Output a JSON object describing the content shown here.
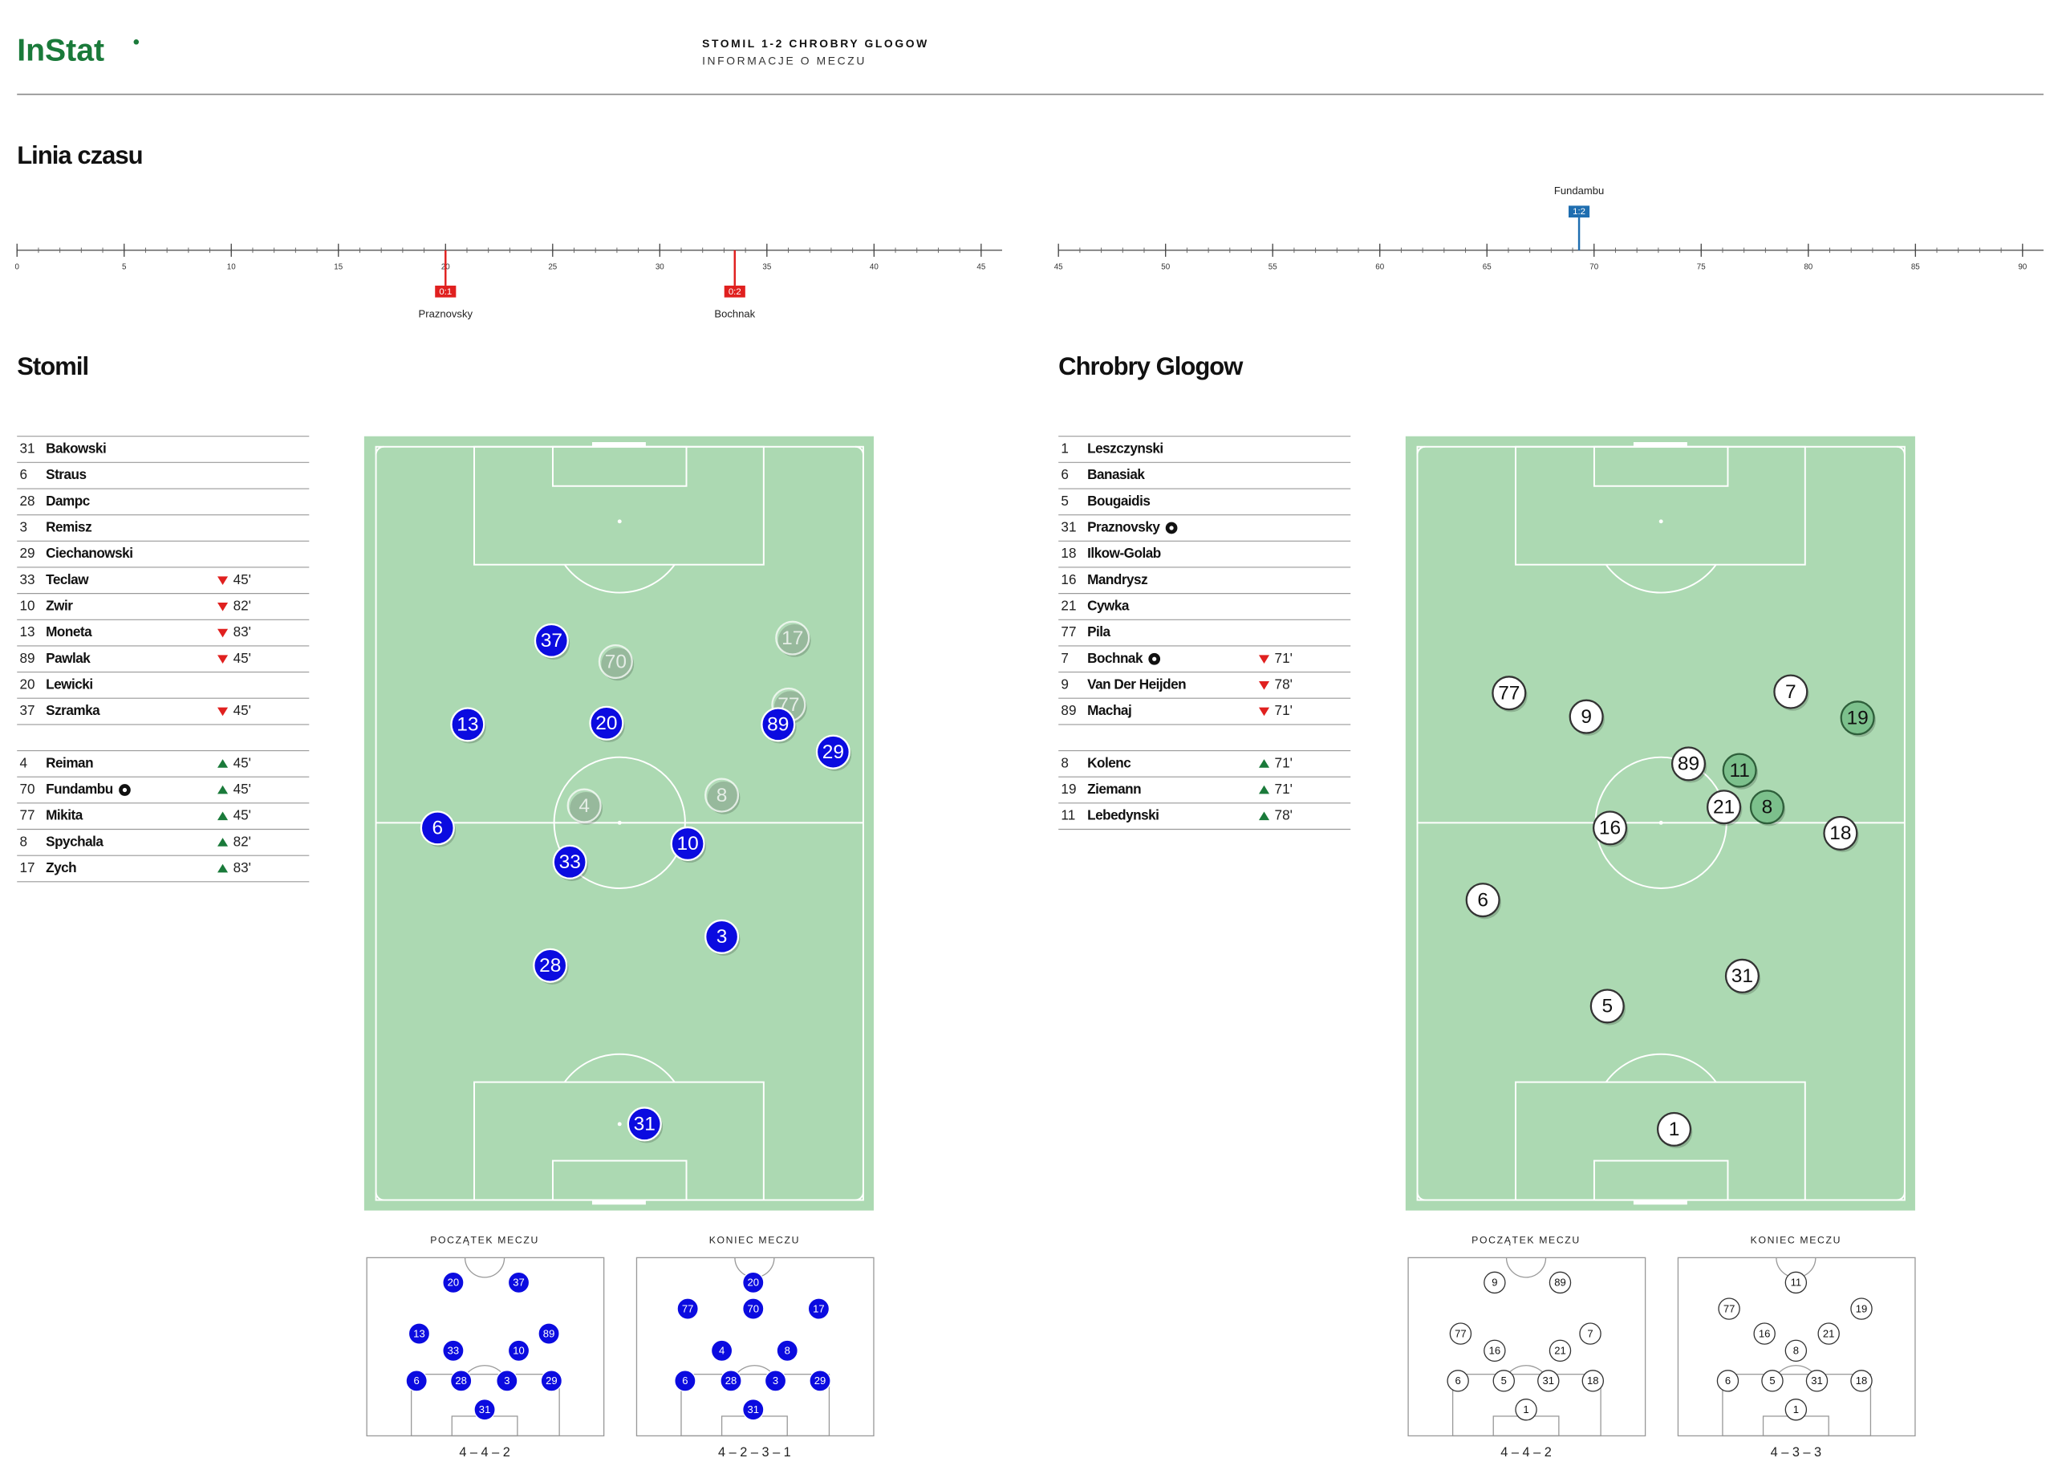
{
  "header": {
    "logo": "InStat",
    "title": "STOMIL 1-2 CHROBRY GLOGOW",
    "subtitle": "INFORMACJE O MECZU"
  },
  "timeline": {
    "title": "Linia czasu",
    "halves": [
      {
        "ticks": [
          0,
          5,
          10,
          15,
          20,
          25,
          30,
          35,
          40,
          45
        ]
      },
      {
        "ticks": [
          45,
          50,
          55,
          60,
          65,
          70,
          75,
          80,
          85,
          90
        ]
      }
    ],
    "events": [
      {
        "minute": 20,
        "score": "0:1",
        "player": "Praznovsky",
        "team": "Chrobry Glogow",
        "color": "#e0201f"
      },
      {
        "minute": 33.5,
        "score": "0:2",
        "player": "Bochnak",
        "team": "Chrobry Glogow",
        "color": "#e0201f"
      },
      {
        "minute": 69.3,
        "score": "1:2",
        "player": "Fundambu",
        "team": "Stomil",
        "color": "#1f6eb0"
      }
    ]
  },
  "teams": [
    {
      "name": "Stomil",
      "color": "#0b0be0",
      "starters": [
        {
          "number": 31,
          "name": "Bakowski"
        },
        {
          "number": 6,
          "name": "Straus"
        },
        {
          "number": 28,
          "name": "Dampc"
        },
        {
          "number": 3,
          "name": "Remisz"
        },
        {
          "number": 29,
          "name": "Ciechanowski"
        },
        {
          "number": 33,
          "name": "Teclaw",
          "sub": "off",
          "minute": "45'"
        },
        {
          "number": 10,
          "name": "Zwir",
          "sub": "off",
          "minute": "82'"
        },
        {
          "number": 13,
          "name": "Moneta",
          "sub": "off",
          "minute": "83'"
        },
        {
          "number": 89,
          "name": "Pawlak",
          "sub": "off",
          "minute": "45'"
        },
        {
          "number": 20,
          "name": "Lewicki"
        },
        {
          "number": 37,
          "name": "Szramka",
          "sub": "off",
          "minute": "45'"
        }
      ],
      "substitutes": [
        {
          "number": 4,
          "name": "Reiman",
          "sub": "on",
          "minute": "45'"
        },
        {
          "number": 70,
          "name": "Fundambu",
          "goal": true,
          "sub": "on",
          "minute": "45'"
        },
        {
          "number": 77,
          "name": "Mikita",
          "sub": "on",
          "minute": "45'"
        },
        {
          "number": 8,
          "name": "Spychala",
          "sub": "on",
          "minute": "82'"
        },
        {
          "number": 17,
          "name": "Zych",
          "sub": "on",
          "minute": "83'"
        }
      ],
      "pitch": [
        37,
        70,
        17,
        13,
        20,
        77,
        89,
        29,
        4,
        8,
        6,
        10,
        33,
        3,
        28,
        31
      ],
      "formations": [
        {
          "label": "POCZĄTEK MECZU",
          "name": "4 – 4 – 2",
          "players": [
            20,
            37,
            13,
            33,
            10,
            89,
            6,
            28,
            3,
            29,
            31
          ]
        },
        {
          "label": "KONIEC MECZU",
          "name": "4 – 2 – 3 – 1",
          "players": [
            20,
            77,
            70,
            17,
            4,
            8,
            6,
            28,
            3,
            29,
            31
          ]
        }
      ]
    },
    {
      "name": "Chrobry Glogow",
      "color": "#ffffff",
      "starters": [
        {
          "number": 1,
          "name": "Leszczynski"
        },
        {
          "number": 6,
          "name": "Banasiak"
        },
        {
          "number": 5,
          "name": "Bougaidis"
        },
        {
          "number": 31,
          "name": "Praznovsky",
          "goal": true
        },
        {
          "number": 18,
          "name": "Ilkow-Golab"
        },
        {
          "number": 16,
          "name": "Mandrysz"
        },
        {
          "number": 21,
          "name": "Cywka"
        },
        {
          "number": 77,
          "name": "Pila"
        },
        {
          "number": 7,
          "name": "Bochnak",
          "goal": true,
          "sub": "off",
          "minute": "71'"
        },
        {
          "number": 9,
          "name": "Van Der Heijden",
          "sub": "off",
          "minute": "78'"
        },
        {
          "number": 89,
          "name": "Machaj",
          "sub": "off",
          "minute": "71'"
        }
      ],
      "substitutes": [
        {
          "number": 8,
          "name": "Kolenc",
          "sub": "on",
          "minute": "71'"
        },
        {
          "number": 19,
          "name": "Ziemann",
          "sub": "on",
          "minute": "71'"
        },
        {
          "number": 11,
          "name": "Lebedynski",
          "sub": "on",
          "minute": "78'"
        }
      ],
      "pitch": [
        77,
        9,
        7,
        19,
        89,
        11,
        21,
        8,
        16,
        18,
        6,
        31,
        5,
        1
      ],
      "formations": [
        {
          "label": "POCZĄTEK MECZU",
          "name": "4 – 4 – 2",
          "players": [
            9,
            89,
            77,
            16,
            21,
            7,
            6,
            5,
            31,
            18,
            1
          ]
        },
        {
          "label": "KONIEC MECZU",
          "name": "4 – 3 – 3",
          "players": [
            11,
            77,
            19,
            16,
            21,
            8,
            6,
            5,
            31,
            18,
            1
          ]
        }
      ]
    }
  ]
}
